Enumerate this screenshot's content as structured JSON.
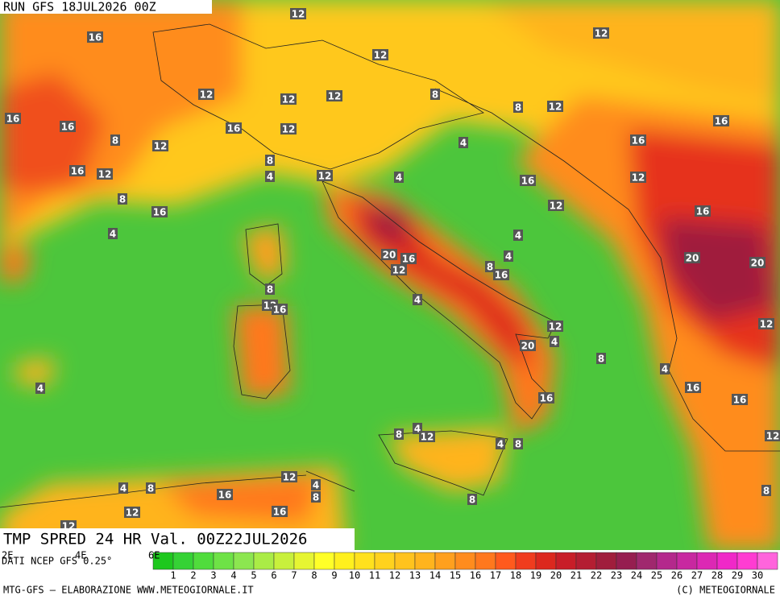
{
  "header": {
    "run": "RUN GFS 18JUL2026 00Z",
    "product": "TMP SPRED 24 HR Val. 00Z22JUL2026",
    "source": "DATI NCEP GFS 0.25°",
    "credit_left": "MTG-GFS — ELABORAZIONE WWW.METEOGIORNALE.IT",
    "credit_right": "(C) METEOGIORNALE"
  },
  "longitude_labels": [
    "2E",
    "4E",
    "6E"
  ],
  "map_labels": [
    12,
    16,
    12,
    12,
    12,
    12,
    12,
    8,
    8,
    12,
    16,
    16,
    16,
    12,
    16,
    12,
    8,
    4,
    16,
    8,
    16,
    12,
    4,
    12,
    4,
    16,
    12,
    8,
    16,
    12,
    16,
    4,
    4,
    20,
    16,
    4,
    20,
    20,
    12,
    8,
    16,
    8,
    12,
    16,
    4,
    12,
    4,
    12,
    20,
    8,
    4,
    4,
    16,
    16,
    16,
    12,
    8,
    4,
    12,
    4,
    8,
    12,
    4,
    8,
    4,
    8,
    16,
    12,
    16,
    8,
    8,
    12
  ],
  "colorbar": {
    "labels": [
      1,
      2,
      3,
      4,
      5,
      6,
      7,
      8,
      9,
      10,
      11,
      12,
      13,
      14,
      15,
      16,
      17,
      18,
      19,
      20,
      21,
      22,
      23,
      24,
      25,
      26,
      27,
      28,
      29,
      30
    ],
    "colors": [
      "#1ec81e",
      "#35d235",
      "#50dc3c",
      "#6ee246",
      "#8ce650",
      "#aaec46",
      "#c8f03c",
      "#e6f532",
      "#ffff28",
      "#fff01e",
      "#ffe11e",
      "#ffd21e",
      "#ffc31e",
      "#ffb41e",
      "#ffa01e",
      "#ff8c1e",
      "#ff781e",
      "#ff5a1e",
      "#f03c1e",
      "#dc281e",
      "#c81e28",
      "#b41e32",
      "#a01e3c",
      "#961e50",
      "#a0286e",
      "#b4288c",
      "#c828a0",
      "#dc28b4",
      "#f028c8",
      "#ff3cd2",
      "#ff64dc"
    ]
  }
}
